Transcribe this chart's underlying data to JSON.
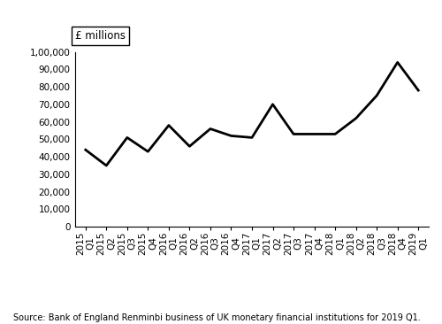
{
  "x_labels": [
    "2015\nQ1",
    "2015\nQ2",
    "2015\nQ3",
    "2015\nQ4",
    "2016\nQ1",
    "2016\nQ2",
    "2016\nQ3",
    "2016\nQ4",
    "2017\nQ1",
    "2017\nQ2",
    "2017\nQ3",
    "2017\nQ4",
    "2018\nQ1",
    "2018\nQ2",
    "2018\nQ3",
    "2018\nQ4",
    "2019\nQ1"
  ],
  "values": [
    44000,
    35000,
    51000,
    43000,
    58000,
    46000,
    56000,
    52000,
    51000,
    70000,
    53000,
    53000,
    53000,
    62000,
    75000,
    94000,
    78000
  ],
  "ylabel_text": "£ millions",
  "ylim": [
    0,
    100000
  ],
  "ytick_values": [
    0,
    10000,
    20000,
    30000,
    40000,
    50000,
    60000,
    70000,
    80000,
    90000,
    100000
  ],
  "ytick_labels": [
    "0",
    "10,000",
    "20,000",
    "30,000",
    "40,000",
    "50,000",
    "60,000",
    "70,000",
    "80,000",
    "90,000",
    "1,00,000"
  ],
  "line_color": "#000000",
  "line_width": 2.0,
  "source_text": "Source: Bank of England Renminbi business of UK monetary financial institutions for 2019 Q1.",
  "tick_fontsize": 7.5,
  "source_fontsize": 7.0,
  "ylabel_fontsize": 8.5
}
